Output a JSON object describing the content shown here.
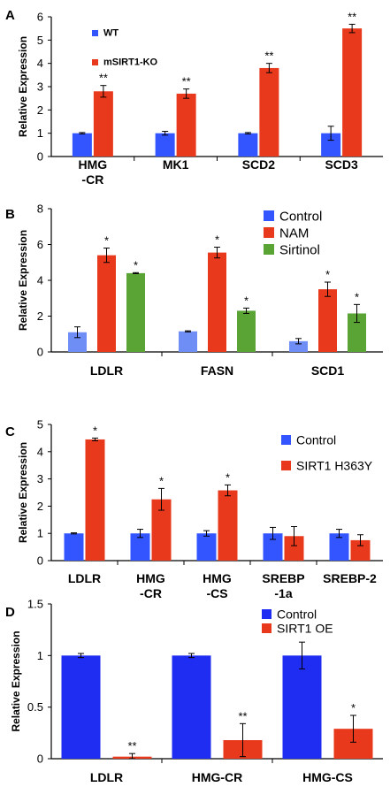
{
  "chart_data": [
    {
      "panel": "A",
      "type": "bar",
      "ylabel": "Relative Expression",
      "ylim": [
        0,
        6
      ],
      "yticks": [
        "0",
        "1",
        "2",
        "3",
        "4",
        "5",
        "6"
      ],
      "categories": [
        [
          "HMG",
          "-CR"
        ],
        [
          "MK1"
        ],
        [
          "SCD2"
        ],
        [
          "SCD3"
        ]
      ],
      "legend_position": "top-left",
      "series": [
        {
          "name": "WT",
          "color": "#3355ff",
          "values": [
            1.0,
            1.0,
            1.0,
            1.0
          ],
          "errors": [
            0.03,
            0.08,
            0.03,
            0.3
          ]
        },
        {
          "name": "mSIRT1-KO",
          "color": "#e8391c",
          "values": [
            2.8,
            2.7,
            3.8,
            5.5
          ],
          "errors": [
            0.25,
            0.2,
            0.2,
            0.18
          ],
          "annotations": [
            "**",
            "**",
            "**",
            "**"
          ]
        }
      ]
    },
    {
      "panel": "B",
      "type": "bar",
      "ylabel": "Relative Expression",
      "ylim": [
        0,
        8
      ],
      "yticks": [
        "0",
        "2",
        "4",
        "6",
        "8"
      ],
      "categories": [
        [
          "LDLR"
        ],
        [
          "FASN"
        ],
        [
          "SCD1"
        ]
      ],
      "legend_position": "top-right",
      "series": [
        {
          "name": "Control",
          "color": "#6e8df5",
          "legend_color": "#3355ff",
          "values": [
            1.1,
            1.15,
            0.6
          ],
          "errors": [
            0.3,
            0.03,
            0.15
          ]
        },
        {
          "name": "NAM",
          "color": "#e8391c",
          "values": [
            5.4,
            5.55,
            3.5
          ],
          "errors": [
            0.4,
            0.3,
            0.4
          ],
          "annotations": [
            "*",
            "*",
            "*"
          ]
        },
        {
          "name": "Sirtinol",
          "color": "#5aa335",
          "values": [
            4.4,
            2.3,
            2.15
          ],
          "errors": [
            0.03,
            0.15,
            0.5
          ],
          "annotations": [
            "*",
            "*",
            "*"
          ]
        }
      ]
    },
    {
      "panel": "C",
      "type": "bar",
      "ylabel": "Relative Expression",
      "ylim": [
        0,
        5
      ],
      "yticks": [
        "0",
        "1",
        "2",
        "3",
        "4",
        "5"
      ],
      "categories": [
        [
          "LDLR"
        ],
        [
          "HMG",
          "-CR"
        ],
        [
          "HMG",
          "-CS"
        ],
        [
          "SREBP",
          "-1a"
        ],
        [
          "SREBP-2"
        ]
      ],
      "legend_position": "top-right",
      "series": [
        {
          "name": "Control",
          "color": "#3355ff",
          "values": [
            1.0,
            1.0,
            1.0,
            1.0,
            1.0
          ],
          "errors": [
            0.02,
            0.15,
            0.1,
            0.22,
            0.15
          ]
        },
        {
          "name": "SIRT1 H363Y",
          "color": "#e8391c",
          "values": [
            4.45,
            2.25,
            2.58,
            0.9,
            0.75
          ],
          "errors": [
            0.05,
            0.4,
            0.2,
            0.35,
            0.2
          ],
          "annotations": [
            "*",
            "*",
            "*",
            "",
            ""
          ]
        }
      ]
    },
    {
      "panel": "D",
      "type": "bar",
      "ylabel": "Relative Expression",
      "ylim": [
        0,
        1.5
      ],
      "yticks": [
        "0",
        "0.5",
        "1",
        "1.5"
      ],
      "categories": [
        [
          "LDLR"
        ],
        [
          "HMG-CR"
        ],
        [
          "HMG-CS"
        ]
      ],
      "legend_position": "top-right",
      "series": [
        {
          "name": "Control",
          "color": "#1f2cf2",
          "values": [
            1.0,
            1.0,
            1.0
          ],
          "errors": [
            0.02,
            0.02,
            0.13
          ]
        },
        {
          "name": "SIRT1 OE",
          "color": "#e8391c",
          "values": [
            0.02,
            0.18,
            0.29
          ],
          "errors": [
            0.03,
            0.16,
            0.13
          ],
          "annotations": [
            "**",
            "**",
            "*"
          ]
        }
      ]
    }
  ]
}
